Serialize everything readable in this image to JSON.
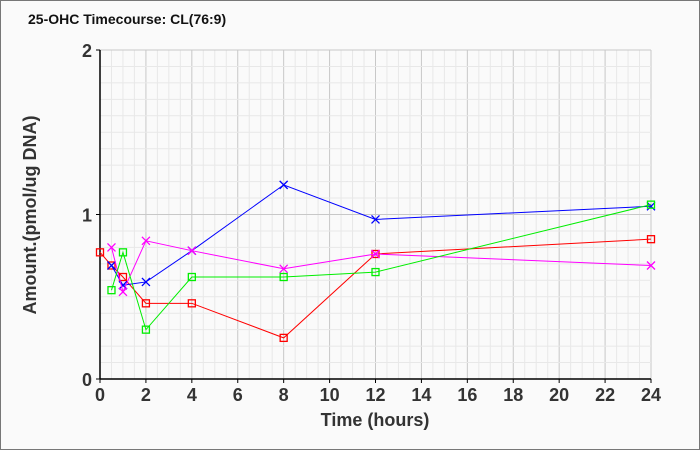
{
  "chart_data": {
    "type": "line",
    "title": "25-OHC Timecourse: CL(76:9)",
    "xlabel": "Time (hours)",
    "ylabel": "Amount.(pmol/ug DNA)",
    "xlim": [
      0,
      24
    ],
    "ylim": [
      0,
      2
    ],
    "xticks": [
      0,
      2,
      4,
      6,
      8,
      10,
      12,
      14,
      16,
      18,
      20,
      22,
      24
    ],
    "yticks": [
      0,
      1,
      2
    ],
    "grid": true,
    "series": [
      {
        "name": "red",
        "color": "#ff0000",
        "marker": "square",
        "x": [
          0,
          0.5,
          1,
          2,
          4,
          8,
          12,
          24
        ],
        "y": [
          0.77,
          0.69,
          0.62,
          0.46,
          0.46,
          0.25,
          0.76,
          0.85
        ]
      },
      {
        "name": "blue",
        "color": "#0000ff",
        "marker": "x",
        "x": [
          0.5,
          1,
          2,
          4,
          8,
          12,
          24
        ],
        "y": [
          0.69,
          0.57,
          0.59,
          0.78,
          1.18,
          0.97,
          1.05
        ]
      },
      {
        "name": "magenta",
        "color": "#ff00ff",
        "marker": "x",
        "x": [
          0.5,
          1,
          2,
          4,
          8,
          12,
          24
        ],
        "y": [
          0.8,
          0.53,
          0.84,
          0.78,
          0.67,
          0.76,
          0.69
        ]
      },
      {
        "name": "green",
        "color": "#00ee00",
        "marker": "square",
        "x": [
          0.5,
          1,
          2,
          4,
          8,
          12,
          24
        ],
        "y": [
          0.54,
          0.77,
          0.3,
          0.62,
          0.62,
          0.65,
          1.06
        ]
      }
    ]
  }
}
